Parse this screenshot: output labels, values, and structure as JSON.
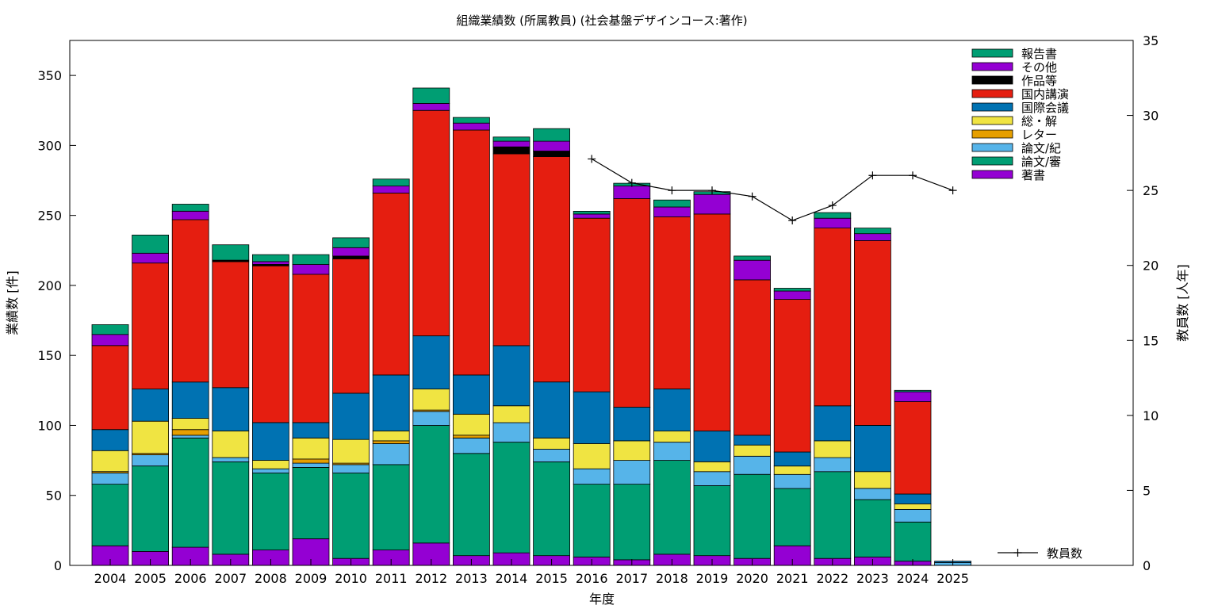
{
  "chart_data": {
    "type": "bar",
    "stacked": true,
    "title": "組織業績数 (所属教員) (社会基盤デザインコース:著作)",
    "xlabel": "年度",
    "ylabel": "業績数 [件]",
    "y2label": "教員数 [人年]",
    "ylim": [
      0,
      375
    ],
    "y2lim": [
      0,
      35
    ],
    "yticks": [
      0,
      50,
      100,
      150,
      200,
      250,
      300,
      350
    ],
    "y2ticks": [
      0,
      5,
      10,
      15,
      20,
      25,
      30,
      35
    ],
    "grid": false,
    "legend_position": "top-right",
    "categories": [
      "2004",
      "2005",
      "2006",
      "2007",
      "2008",
      "2009",
      "2010",
      "2011",
      "2012",
      "2013",
      "2014",
      "2015",
      "2016",
      "2017",
      "2018",
      "2019",
      "2020",
      "2021",
      "2022",
      "2023",
      "2024",
      "2025"
    ],
    "series": [
      {
        "name": "著書",
        "color": "#9400D3",
        "values": [
          14,
          10,
          13,
          8,
          11,
          19,
          5,
          11,
          16,
          7,
          9,
          7,
          6,
          4,
          8,
          7,
          5,
          14,
          5,
          6,
          3,
          0
        ]
      },
      {
        "name": "論文/審",
        "color": "#009E73",
        "values": [
          44,
          61,
          78,
          66,
          55,
          51,
          61,
          61,
          84,
          73,
          79,
          67,
          52,
          54,
          67,
          50,
          60,
          41,
          62,
          41,
          28,
          0
        ]
      },
      {
        "name": "論文/紀",
        "color": "#56B4E9",
        "values": [
          8,
          8,
          2,
          3,
          3,
          3,
          6,
          15,
          10,
          11,
          14,
          9,
          11,
          17,
          13,
          10,
          13,
          10,
          10,
          8,
          9,
          2
        ]
      },
      {
        "name": "レター",
        "color": "#E69F00",
        "values": [
          1,
          1,
          4,
          0,
          0,
          3,
          1,
          2,
          1,
          2,
          0,
          0,
          0,
          0,
          0,
          0,
          0,
          0,
          0,
          0,
          0,
          0
        ]
      },
      {
        "name": "総・解",
        "color": "#F0E442",
        "values": [
          15,
          23,
          8,
          19,
          6,
          15,
          17,
          7,
          15,
          15,
          12,
          8,
          18,
          14,
          8,
          7,
          8,
          6,
          12,
          12,
          4,
          0
        ]
      },
      {
        "name": "国際会議",
        "color": "#0072B2",
        "values": [
          15,
          23,
          26,
          31,
          27,
          11,
          33,
          40,
          38,
          28,
          43,
          40,
          37,
          24,
          30,
          22,
          7,
          10,
          25,
          33,
          7,
          1
        ]
      },
      {
        "name": "国内講演",
        "color": "#E51E10",
        "values": [
          60,
          90,
          116,
          90,
          112,
          106,
          96,
          130,
          161,
          175,
          137,
          161,
          124,
          149,
          123,
          155,
          111,
          109,
          127,
          132,
          66,
          0
        ]
      },
      {
        "name": "作品等",
        "color": "#000000",
        "values": [
          0,
          0,
          0,
          1,
          1,
          0,
          2,
          0,
          0,
          0,
          5,
          4,
          0,
          0,
          0,
          0,
          0,
          0,
          0,
          0,
          0,
          0
        ]
      },
      {
        "name": "その他",
        "color": "#9400D3",
        "values": [
          8,
          7,
          6,
          0,
          2,
          7,
          6,
          5,
          5,
          5,
          4,
          7,
          3,
          9,
          7,
          14,
          14,
          6,
          7,
          5,
          7,
          0
        ]
      },
      {
        "name": "報告書",
        "color": "#009E73",
        "values": [
          7,
          13,
          5,
          11,
          5,
          7,
          7,
          5,
          11,
          4,
          3,
          9,
          2,
          2,
          5,
          2,
          3,
          2,
          4,
          4,
          1,
          0
        ]
      }
    ],
    "line_series": {
      "name": "教員数",
      "axis": "y2",
      "x": [
        "2016",
        "2017",
        "2018",
        "2019",
        "2020",
        "2021",
        "2022",
        "2023",
        "2024",
        "2025"
      ],
      "values": [
        27.1,
        25.5,
        25.0,
        25.0,
        24.6,
        23.0,
        24.0,
        26.0,
        26.0,
        25.0
      ]
    }
  }
}
